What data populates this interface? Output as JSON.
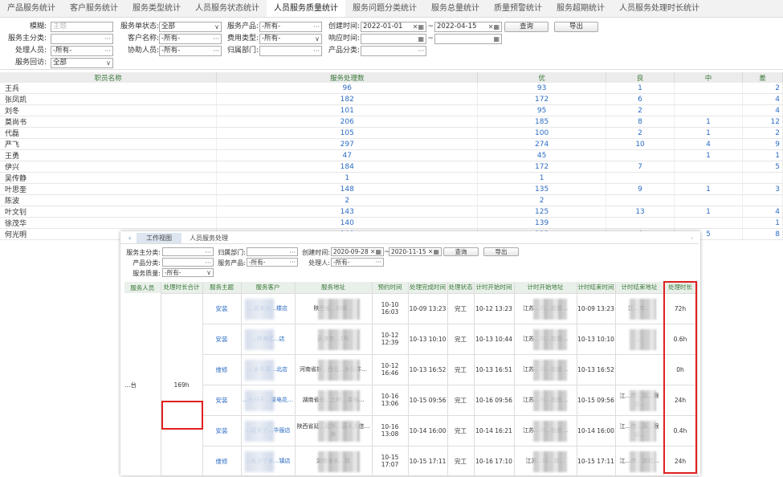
{
  "tabs": [
    "产品服务统计",
    "客户服务统计",
    "服务类型统计",
    "人员服务状态统计",
    "人员服务质量统计",
    "服务问题分类统计",
    "服务总量统计",
    "质量预警统计",
    "服务超期统计",
    "人员服务处理时长统计"
  ],
  "active_tab": 4,
  "filters": {
    "fuzzy_label": "模糊:",
    "fuzzy_placeholder": "主题",
    "status_label": "服务单状态:",
    "status_value": "全部",
    "product_label": "服务产品:",
    "product_value": "-所有-",
    "created_label": "创建时间:",
    "created_from": "2022-01-01",
    "created_to": "2022-04-15",
    "query": "查询",
    "export": "导出",
    "main_cat_label": "服务主分类:",
    "customer_label": "客户名称:",
    "customer_value": "-所有-",
    "fee_label": "费用类型:",
    "fee_value": "-所有-",
    "response_label": "响应时间:",
    "handler_label": "处理人员:",
    "handler_value": "-所有-",
    "assist_label": "协助人员:",
    "assist_value": "-所有-",
    "dept_label": "归属部门:",
    "prodcat_label": "产品分类:",
    "revisit_label": "服务回访:",
    "revisit_value": "全部",
    "tilde": "~"
  },
  "table": {
    "headers": [
      "职员名称",
      "服务处理数",
      "优",
      "良",
      "中",
      "差"
    ],
    "rows": [
      [
        "王兵",
        "96",
        "93",
        "1",
        "",
        "2"
      ],
      [
        "张凤凯",
        "182",
        "172",
        "6",
        "",
        "4"
      ],
      [
        "刘冬",
        "101",
        "95",
        "2",
        "",
        "4"
      ],
      [
        "莫尚书",
        "206",
        "185",
        "8",
        "1",
        "12"
      ],
      [
        "代磊",
        "105",
        "100",
        "2",
        "1",
        "2"
      ],
      [
        "严飞",
        "297",
        "274",
        "10",
        "4",
        "9"
      ],
      [
        "王勇",
        "47",
        "45",
        "",
        "1",
        "1"
      ],
      [
        "伊兴",
        "184",
        "172",
        "7",
        "",
        "5"
      ],
      [
        "吴传静",
        "1",
        "1",
        "",
        "",
        ""
      ],
      [
        "叶思奎",
        "148",
        "135",
        "9",
        "1",
        "3"
      ],
      [
        "陈波",
        "2",
        "2",
        "",
        "",
        ""
      ],
      [
        "叶文钊",
        "143",
        "125",
        "13",
        "1",
        "4"
      ],
      [
        "徐茂华",
        "140",
        "139",
        "",
        "",
        "1"
      ],
      [
        "何光明",
        "140",
        "123",
        "4",
        "5",
        "8"
      ]
    ]
  },
  "popup": {
    "tabs": [
      "工作视图",
      "人员服务处理"
    ],
    "filters": {
      "main_cat_label": "服务主分类:",
      "dept_label": "归属部门:",
      "created_label": "创建时间:",
      "from": "2020-09-28",
      "to": "2020-11-15",
      "query": "查询",
      "export": "导出",
      "prodcat_label": "产品分类:",
      "product_label": "服务产品:",
      "product_value": "-所有-",
      "handler_label": "处理人:",
      "handler_value": "-所有-",
      "quality_label": "服务质量:",
      "quality_value": "-所有-",
      "tilde": "~"
    },
    "headers": [
      "服务人员",
      "处理时长合计",
      "服务主题",
      "服务客户",
      "服务地址",
      "预约时间",
      "处理完成时间",
      "处理状态",
      "计时开始时间",
      "计时开始地址",
      "计时结束时间",
      "计时结束地址",
      "处理时长"
    ],
    "person": "…台",
    "total": "169h",
    "rows": [
      {
        "topic": "安装",
        "customer": "…延安火…楼店",
        "address": "陕西省…府家…",
        "appt": "10-10 16:03",
        "done": "10-09 13:23",
        "status": "完工",
        "start": "10-12 13:23",
        "start_addr": "江苏…川…技股…",
        "end": "10-09 13:23",
        "end_addr": "江…市…",
        "dur": "72h"
      },
      {
        "topic": "安装",
        "customer": "…静海区…店",
        "address": "天津市…2号",
        "appt": "10-12 12:39",
        "done": "10-13 10:10",
        "status": "完工",
        "start": "10-13 10:44",
        "start_addr": "江苏…川…技股…",
        "end": "10-13 10:10",
        "end_addr": "…",
        "dur": "0.6h"
      },
      {
        "topic": "维修",
        "customer": "…乡平原…北店",
        "address": "河南省新…西北…乡马井…",
        "appt": "10-12 16:46",
        "done": "10-13 16:52",
        "status": "完工",
        "start": "10-13 16:51",
        "start_addr": "江苏…川…技股…",
        "end": "10-13 16:52",
        "end_addr": "",
        "dur": "0h"
      },
      {
        "topic": "安装",
        "customer": "…长沙天…量电花…",
        "address": "湖南省长…土岭…量电…",
        "appt": "10-16 13:06",
        "done": "10-15 09:56",
        "status": "完工",
        "start": "10-16 09:56",
        "start_addr": "江苏…川…技股…",
        "end": "10-15 09:56",
        "end_addr": "江…市…源…限公…",
        "dur": "24h"
      },
      {
        "topic": "安装",
        "customer": "…延安子…华服店",
        "address": "陕西省延…延华…庭人人佳…美",
        "appt": "10-16 13:08",
        "done": "10-14 16:00",
        "status": "完工",
        "start": "10-14 16:21",
        "start_addr": "江苏…川…技股…",
        "end": "10-14 16:00",
        "end_addr": "江…市…源…限公…",
        "dur": "0.4h"
      },
      {
        "topic": "维修",
        "customer": "…长沙宁乡…镇店",
        "address": "湖南省长…镇",
        "appt": "10-15 17:07",
        "done": "10-15 17:11",
        "status": "完工",
        "start": "10-16 17:10",
        "start_addr": "江苏…川…技…",
        "end": "10-15 17:11",
        "end_addr": "江…市…源机…",
        "dur": "24h"
      }
    ]
  },
  "colors": {
    "link": "#2b6cc4",
    "header_text": "#3a7a3a",
    "highlight": "#e02020"
  }
}
